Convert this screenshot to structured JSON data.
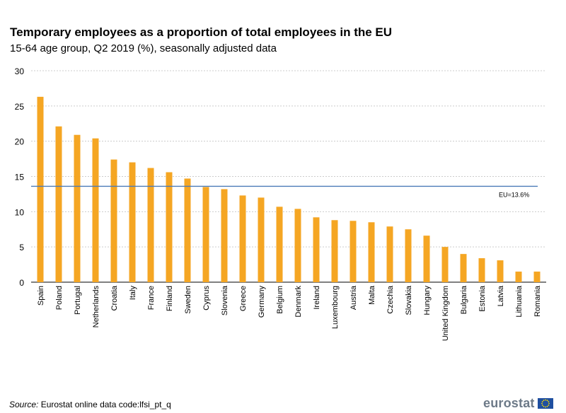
{
  "header": {
    "title": "Temporary employees as a proportion of total employees in the EU",
    "subtitle": "15-64 age group, Q2 2019 (%), seasonally adjusted data"
  },
  "footer": {
    "source_label": "Source:",
    "source_text": "Eurostat online data code:lfsi_pt_q",
    "logo_text": "eurostat",
    "logo_icon": "eu-flag-icon"
  },
  "colors": {
    "bar": "#f5a623",
    "reference_line": "#4a7ab8",
    "grid": "#cccccc"
  },
  "chart_data": {
    "type": "bar",
    "title": "Temporary employees as a proportion of total employees in the EU",
    "subtitle": "15-64 age group, Q2 2019 (%), seasonally adjusted data",
    "xlabel": "",
    "ylabel": "",
    "ylim": [
      0,
      30
    ],
    "yticks": [
      0,
      5,
      10,
      15,
      20,
      25,
      30
    ],
    "grid": true,
    "categories": [
      "Spain",
      "Poland",
      "Portugal",
      "Netherlands",
      "Croatia",
      "Italy",
      "France",
      "Finland",
      "Sweden",
      "Cyprus",
      "Slovenia",
      "Greece",
      "Germany",
      "Belgium",
      "Denmark",
      "Ireland",
      "Luxembourg",
      "Austria",
      "Malta",
      "Czechia",
      "Slovakia",
      "Hungary",
      "United Kingdom",
      "Bulgaria",
      "Estonia",
      "Latvia",
      "Lithuania",
      "Romania"
    ],
    "values": [
      26.3,
      22.1,
      20.9,
      20.4,
      17.4,
      17.0,
      16.2,
      15.6,
      14.7,
      13.5,
      13.2,
      12.3,
      12.0,
      10.7,
      10.4,
      9.2,
      8.8,
      8.7,
      8.5,
      7.9,
      7.5,
      6.6,
      5.0,
      4.0,
      3.4,
      3.1,
      1.5,
      1.5
    ],
    "reference_line": {
      "value": 13.6,
      "label": "EU=13.6%"
    }
  }
}
